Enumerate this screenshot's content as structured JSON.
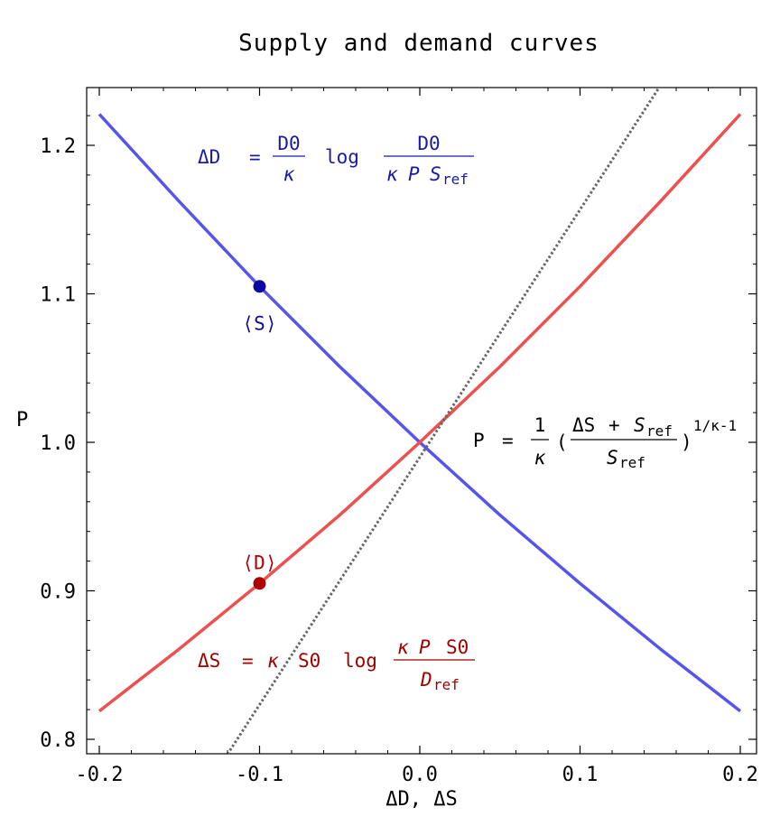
{
  "chart_data": {
    "type": "line",
    "title": "Supply and demand curves",
    "xlabel": "ΔD, ΔS",
    "ylabel": "P",
    "xlim": [
      -0.2,
      0.2
    ],
    "ylim": [
      0.79,
      1.24
    ],
    "x_ticks": [
      -0.2,
      -0.1,
      0.0,
      0.1,
      0.2
    ],
    "x_tick_labels": [
      "-0.2",
      "-0.1",
      "0.0",
      "0.1",
      "0.2"
    ],
    "y_ticks": [
      0.8,
      0.9,
      1.0,
      1.1,
      1.2
    ],
    "y_tick_labels": [
      "0.8",
      "0.9",
      "1.0",
      "1.1",
      "1.2"
    ],
    "grid": false,
    "series": [
      {
        "color": "#5555ee",
        "style": "solid",
        "x": [
          -0.2,
          -0.15,
          -0.1,
          -0.05,
          0.0,
          0.05,
          0.1,
          0.15,
          0.2
        ],
        "y": [
          1.221,
          1.162,
          1.105,
          1.051,
          1.0,
          0.951,
          0.905,
          0.861,
          0.819
        ]
      },
      {
        "color": "#ee4f4f",
        "style": "solid",
        "x": [
          -0.2,
          -0.15,
          -0.1,
          -0.05,
          0.0,
          0.05,
          0.1,
          0.15,
          0.2
        ],
        "y": [
          0.819,
          0.861,
          0.905,
          0.951,
          1.0,
          1.051,
          1.105,
          1.162,
          1.221
        ]
      },
      {
        "color": "#666666",
        "style": "dotted",
        "x": [
          -0.12,
          0.15
        ],
        "y": [
          0.79,
          1.24
        ]
      }
    ],
    "points": [
      {
        "x": -0.1,
        "y": 1.105,
        "color": "#0a0aa0",
        "label": "⟨S⟩"
      },
      {
        "x": -0.1,
        "y": 0.905,
        "color": "#b00000",
        "label": "⟨D⟩"
      }
    ],
    "annotations": {
      "demand_eq": {
        "lhs": "ΔD",
        "eq": "=",
        "frac1_num": "D0",
        "frac1_den": "κ",
        "op": "log",
        "frac2_num": "D0",
        "frac2_den_a": "κ",
        "frac2_den_b": "P",
        "frac2_den_c": "S",
        "frac2_den_sub": "ref",
        "color": "#1a1aa6"
      },
      "supply_eq": {
        "lhs": "ΔS",
        "eq": "=",
        "k": "κ",
        "s0": "S0",
        "op": "log",
        "frac_num_a": "κ",
        "frac_num_b": "P",
        "frac_num_c": "S0",
        "frac_den": "D",
        "frac_den_sub": "ref",
        "color": "#a00000"
      },
      "price_eq": {
        "lhs": "P",
        "eq": "=",
        "frac1_num": "1",
        "frac1_den": "κ",
        "lparen": "(",
        "frac2_num_a": "ΔS",
        "frac2_num_plus": "+",
        "frac2_num_b": "S",
        "frac2_num_sub": "ref",
        "frac2_den": "S",
        "frac2_den_sub": "ref",
        "rparen": ")",
        "exponent": "1/κ-1",
        "color": "#000000"
      }
    }
  }
}
